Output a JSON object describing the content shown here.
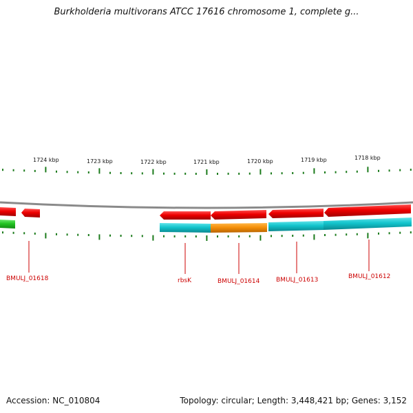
{
  "title": "Burkholderia multivorans ATCC 17616 chromosome 1, complete g...",
  "footer": {
    "accession": "Accession: NC_010804",
    "stats": "Topology: circular; Length: 3,448,421 bp; Genes: 3,152"
  },
  "scale_labels": [
    "1724 kbp",
    "1723 kbp",
    "1722 kbp",
    "1721 kbp",
    "1720 kbp",
    "1719 kbp",
    "1718 kbp"
  ],
  "gene_labels": [
    "BMULJ_01618",
    "rbsK",
    "BMULJ_01614",
    "BMULJ_01613",
    "BMULJ_01612"
  ],
  "colors": {
    "forward_strand": "#e00000",
    "reverse_cyan": "#10c8d0",
    "orange": "#f5900a",
    "green": "#20c020",
    "tick": "#1a7a1a",
    "backbone": "#8a8a8a",
    "label_red": "#cc0000"
  }
}
